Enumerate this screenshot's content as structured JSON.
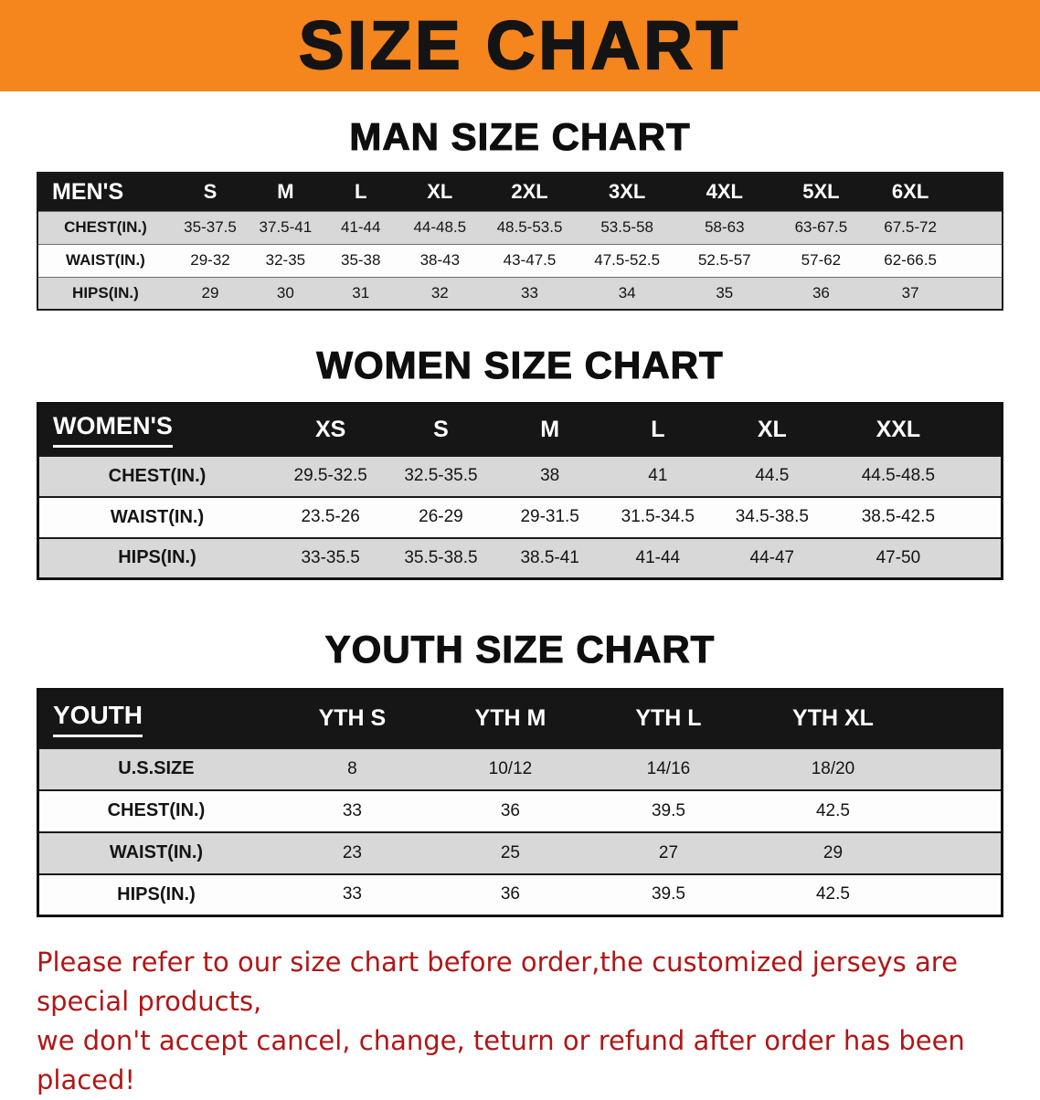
{
  "banner": {
    "title": "SIZE CHART"
  },
  "colors": {
    "banner_orange": "#f5851d",
    "header_black": "#161616",
    "row_gray": "#d8d8d8",
    "footer_red": "#b11616"
  },
  "sections": {
    "men": {
      "heading": "MAN SIZE CHART",
      "table": {
        "header": [
          "MEN'S",
          "S",
          "M",
          "L",
          "XL",
          "2XL",
          "3XL",
          "4XL",
          "5XL",
          "6XL"
        ],
        "rows": [
          {
            "label": "CHEST(IN.)",
            "values": [
              "35-37.5",
              "37.5-41",
              "41-44",
              "44-48.5",
              "48.5-53.5",
              "53.5-58",
              "58-63",
              "63-67.5",
              "67.5-72"
            ]
          },
          {
            "label": "WAIST(IN.)",
            "values": [
              "29-32",
              "32-35",
              "35-38",
              "38-43",
              "43-47.5",
              "47.5-52.5",
              "52.5-57",
              "57-62",
              "62-66.5"
            ]
          },
          {
            "label": "HIPS(IN.)",
            "values": [
              "29",
              "30",
              "31",
              "32",
              "33",
              "34",
              "35",
              "36",
              "37"
            ]
          }
        ]
      }
    },
    "women": {
      "heading": "WOMEN SIZE CHART",
      "table": {
        "header": [
          "WOMEN'S",
          "XS",
          "S",
          "M",
          "L",
          "XL",
          "XXL"
        ],
        "rows": [
          {
            "label": "CHEST(IN.)",
            "values": [
              "29.5-32.5",
              "32.5-35.5",
              "38",
              "41",
              "44.5",
              "44.5-48.5"
            ]
          },
          {
            "label": "WAIST(IN.)",
            "values": [
              "23.5-26",
              "26-29",
              "29-31.5",
              "31.5-34.5",
              "34.5-38.5",
              "38.5-42.5"
            ]
          },
          {
            "label": "HIPS(IN.)",
            "values": [
              "33-35.5",
              "35.5-38.5",
              "38.5-41",
              "41-44",
              "44-47",
              "47-50"
            ]
          }
        ]
      }
    },
    "youth": {
      "heading": "YOUTH SIZE CHART",
      "table": {
        "header": [
          "YOUTH",
          "YTH S",
          "YTH M",
          "YTH L",
          "YTH XL"
        ],
        "rows": [
          {
            "label": "U.S.SIZE",
            "values": [
              "8",
              "10/12",
              "14/16",
              "18/20"
            ]
          },
          {
            "label": "CHEST(IN.)",
            "values": [
              "33",
              "36",
              "39.5",
              "42.5"
            ]
          },
          {
            "label": "WAIST(IN.)",
            "values": [
              "23",
              "25",
              "27",
              "29"
            ]
          },
          {
            "label": "HIPS(IN.)",
            "values": [
              "33",
              "36",
              "39.5",
              "42.5"
            ]
          }
        ]
      }
    }
  },
  "footer": {
    "line1": "Please refer to our size chart before order,the customized jerseys are special products,",
    "line2": "we don't accept cancel, change, teturn or refund after order has been placed!"
  }
}
